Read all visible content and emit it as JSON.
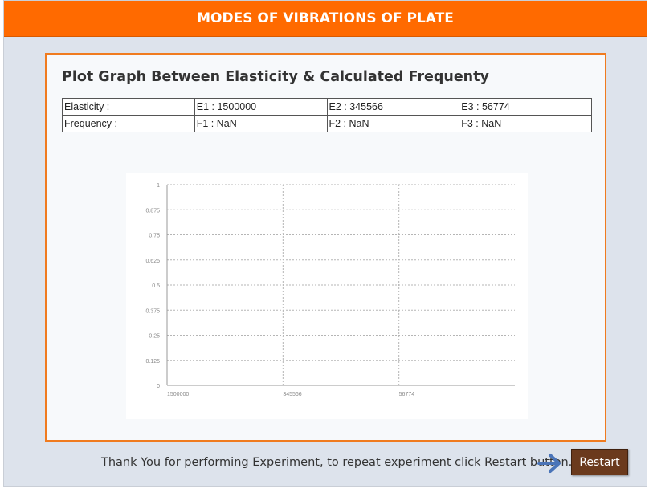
{
  "header": {
    "title": "MODES OF VIBRATIONS OF PLATE"
  },
  "panel": {
    "title": "Plot Graph Between Elasticity & Calculated Frequenty",
    "table": {
      "rows": [
        [
          "Elasticity :",
          "E1 : 1500000",
          "E2 : 345566",
          "E3 : 56774"
        ],
        [
          "Frequency :",
          "F1 : NaN",
          "F2 : NaN",
          "F3 : NaN"
        ]
      ]
    }
  },
  "chart_data": {
    "type": "line",
    "categories": [
      "1500000",
      "345566",
      "56774"
    ],
    "series": [],
    "yticks": [
      "0",
      "0.125",
      "0.25",
      "0.375",
      "0.5",
      "0.625",
      "0.75",
      "0.875",
      "1"
    ],
    "ylim": [
      0,
      1
    ],
    "grid": true
  },
  "footer": {
    "message": "Thank You for performing Experiment, to repeat experiment click Restart button.",
    "restart_label": "Restart",
    "arrow_icon": "arrow-right-icon",
    "arrow_color": "#4a74b8",
    "button_color": "#6b3a1d"
  }
}
